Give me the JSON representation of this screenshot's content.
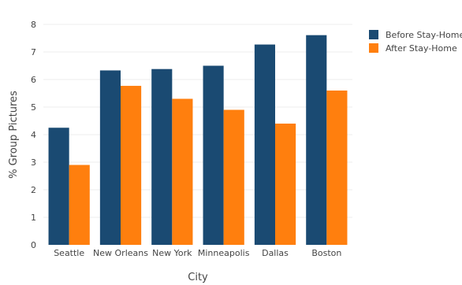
{
  "chart_data": {
    "type": "bar",
    "categories": [
      "Seattle",
      "New Orleans",
      "New York",
      "Minneapolis",
      "Dallas",
      "Boston"
    ],
    "series": [
      {
        "name": "Before Stay-Home",
        "color": "#1a4a72",
        "values": [
          4.25,
          6.33,
          6.38,
          6.5,
          7.27,
          7.61
        ]
      },
      {
        "name": "After Stay-Home",
        "color": "#ff7f0e",
        "values": [
          2.9,
          5.77,
          5.3,
          4.9,
          4.4,
          5.6
        ]
      }
    ],
    "xlabel": "City",
    "ylabel": "% Group Pictures",
    "ylim": [
      0,
      8
    ],
    "yticks": [
      0,
      1,
      2,
      3,
      4,
      5,
      6,
      7,
      8
    ],
    "grid": true,
    "legend_position": "top-right"
  }
}
